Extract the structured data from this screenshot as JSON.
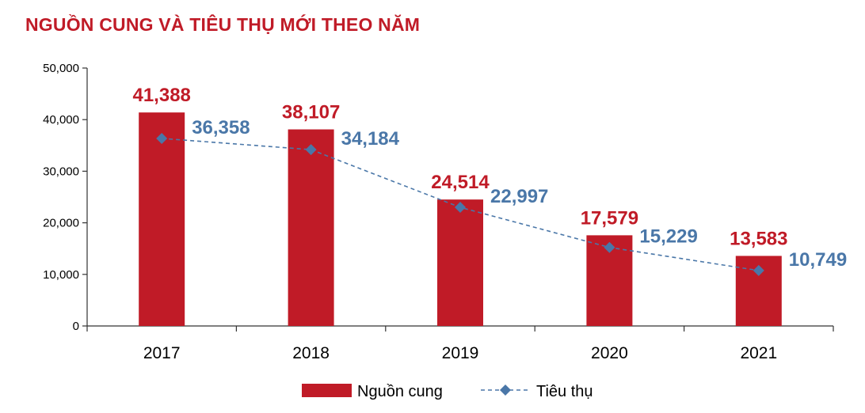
{
  "chart_data": {
    "type": "bar",
    "title": "NGUỒN CUNG VÀ TIÊU THỤ MỚI THEO NĂM",
    "categories": [
      "2017",
      "2018",
      "2019",
      "2020",
      "2021"
    ],
    "ylim": [
      0,
      50000
    ],
    "yticks": [
      0,
      10000,
      20000,
      30000,
      40000,
      50000
    ],
    "ytick_labels": [
      "0",
      "10,000",
      "20,000",
      "30,000",
      "40,000",
      "50,000"
    ],
    "series": [
      {
        "name": "Nguồn cung",
        "kind": "bar",
        "color": "#c01b27",
        "values": [
          41388,
          38107,
          24514,
          17579,
          13583
        ],
        "labels": [
          "41,388",
          "38,107",
          "24,514",
          "17,579",
          "13,583"
        ]
      },
      {
        "name": "Tiêu thụ",
        "kind": "line",
        "style": "dashed",
        "marker": "diamond",
        "color": "#4a77a8",
        "values": [
          36358,
          34184,
          22997,
          15229,
          10749
        ],
        "labels": [
          "36,358",
          "34,184",
          "22,997",
          "15,229",
          "10,749"
        ]
      }
    ],
    "legend_position": "bottom-center"
  }
}
